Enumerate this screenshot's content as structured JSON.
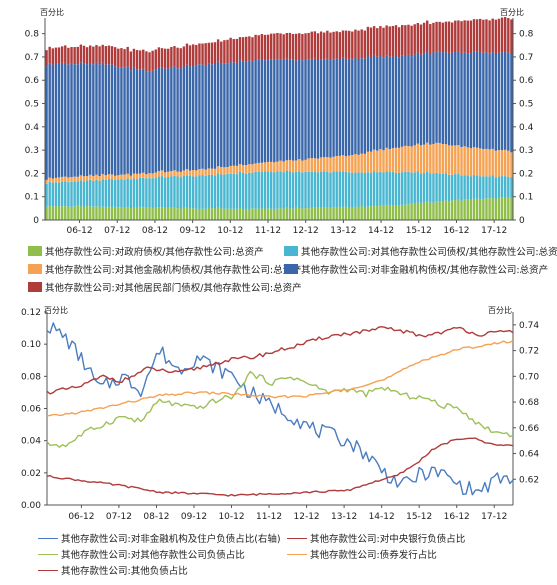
{
  "chart_data": [
    {
      "type": "bar",
      "stacked": true,
      "left_axis_title": "百分比",
      "right_axis_title": "百分比",
      "ylim": [
        0,
        0.85
      ],
      "y_ticks": [
        "0",
        "0.1",
        "0.2",
        "0.3",
        "0.4",
        "0.5",
        "0.6",
        "0.7",
        "0.8"
      ],
      "x_ticks": [
        "06-12",
        "07-12",
        "08-12",
        "09-12",
        "10-12",
        "11-12",
        "12-12",
        "13-12",
        "14-12",
        "15-12",
        "16-12",
        "17-12"
      ],
      "x_start": "2006-01",
      "x_end": "2018-06",
      "series": [
        {
          "name": "其他存款性公司:对政府债权/其他存款性公司:总资产",
          "color": "#8fbe4a",
          "anchors": [
            [
              2006.0,
              0.06
            ],
            [
              2008.0,
              0.055
            ],
            [
              2010.0,
              0.05
            ],
            [
              2012.0,
              0.05
            ],
            [
              2014.0,
              0.055
            ],
            [
              2015.5,
              0.065
            ],
            [
              2016.5,
              0.08
            ],
            [
              2017.5,
              0.09
            ],
            [
              2018.4,
              0.095
            ]
          ]
        },
        {
          "name": "其他存款性公司:对其他存款性公司债权/其他存款性公司:总资产",
          "color": "#48b6d0",
          "anchors": [
            [
              2006.0,
              0.1
            ],
            [
              2008.0,
              0.12
            ],
            [
              2010.0,
              0.14
            ],
            [
              2012.0,
              0.16
            ],
            [
              2014.0,
              0.15
            ],
            [
              2015.5,
              0.14
            ],
            [
              2016.5,
              0.12
            ],
            [
              2017.5,
              0.1
            ],
            [
              2018.4,
              0.09
            ]
          ]
        },
        {
          "name": "其他存款性公司:对其他金融机构债权/其他存款性公司:总资产",
          "color": "#f6a253",
          "anchors": [
            [
              2006.0,
              0.02
            ],
            [
              2008.0,
              0.02
            ],
            [
              2010.0,
              0.025
            ],
            [
              2012.0,
              0.04
            ],
            [
              2014.0,
              0.07
            ],
            [
              2015.5,
              0.11
            ],
            [
              2016.5,
              0.13
            ],
            [
              2017.5,
              0.12
            ],
            [
              2018.4,
              0.11
            ]
          ]
        },
        {
          "name": "其他存款性公司:对非金融机构债权/其他存款性公司:总资产",
          "color": "#3a66aa",
          "anchors": [
            [
              2006.0,
              0.49
            ],
            [
              2007.5,
              0.48
            ],
            [
              2008.7,
              0.44
            ],
            [
              2010.0,
              0.45
            ],
            [
              2012.0,
              0.44
            ],
            [
              2013.5,
              0.42
            ],
            [
              2014.5,
              0.41
            ],
            [
              2015.5,
              0.39
            ],
            [
              2016.5,
              0.39
            ],
            [
              2017.5,
              0.41
            ],
            [
              2018.4,
              0.42
            ]
          ]
        },
        {
          "name": "其他存款性公司:对其他居民部门债权/其他存款性公司:总资产",
          "color": "#b03b3b",
          "anchors": [
            [
              2006.0,
              0.07
            ],
            [
              2008.0,
              0.08
            ],
            [
              2010.0,
              0.09
            ],
            [
              2012.0,
              0.11
            ],
            [
              2014.0,
              0.12
            ],
            [
              2015.5,
              0.13
            ],
            [
              2016.5,
              0.13
            ],
            [
              2017.5,
              0.14
            ],
            [
              2018.4,
              0.15
            ]
          ]
        }
      ]
    },
    {
      "type": "line",
      "left_axis_title": "百分比",
      "right_axis_title": "百分比",
      "ylim_left": [
        0,
        0.12
      ],
      "ylim_right": [
        0.6,
        0.75
      ],
      "y_ticks_left": [
        "0.00",
        "0.02",
        "0.04",
        "0.06",
        "0.08",
        "0.10",
        "0.12"
      ],
      "y_ticks_right": [
        "0.62",
        "0.64",
        "0.66",
        "0.68",
        "0.70",
        "0.72",
        "0.74"
      ],
      "x_ticks": [
        "06-12",
        "07-12",
        "08-12",
        "09-12",
        "10-12",
        "11-12",
        "12-12",
        "13-12",
        "14-12",
        "15-12",
        "16-12",
        "17-12"
      ],
      "x_start": "2006-01",
      "x_end": "2018-06",
      "series": [
        {
          "name": "其他存款性公司:对非金融机构及住户负债占比(右轴)",
          "color": "#4a7cc0",
          "axis": "right",
          "anchors": [
            [
              2006.0,
              0.74
            ],
            [
              2006.5,
              0.73
            ],
            [
              2007.0,
              0.71
            ],
            [
              2007.4,
              0.69
            ],
            [
              2008.0,
              0.7
            ],
            [
              2008.5,
              0.69
            ],
            [
              2009.0,
              0.72
            ],
            [
              2009.5,
              0.705
            ],
            [
              2010.0,
              0.715
            ],
            [
              2010.6,
              0.705
            ],
            [
              2011.0,
              0.7
            ],
            [
              2011.3,
              0.69
            ],
            [
              2011.8,
              0.68
            ],
            [
              2012.5,
              0.67
            ],
            [
              2013.0,
              0.66
            ],
            [
              2013.5,
              0.655
            ],
            [
              2014.0,
              0.65
            ],
            [
              2014.5,
              0.64
            ],
            [
              2015.0,
              0.625
            ],
            [
              2015.5,
              0.615
            ],
            [
              2016.0,
              0.625
            ],
            [
              2016.5,
              0.625
            ],
            [
              2017.0,
              0.615
            ],
            [
              2017.5,
              0.61
            ],
            [
              2018.0,
              0.62
            ],
            [
              2018.4,
              0.62
            ]
          ]
        },
        {
          "name": "其他存款性公司:对中央银行负债占比",
          "color": "#b03b3b",
          "axis": "left",
          "anchors": [
            [
              2006.0,
              0.018
            ],
            [
              2007.0,
              0.015
            ],
            [
              2008.0,
              0.012
            ],
            [
              2009.0,
              0.008
            ],
            [
              2010.0,
              0.007
            ],
            [
              2011.0,
              0.006
            ],
            [
              2012.0,
              0.007
            ],
            [
              2013.0,
              0.008
            ],
            [
              2014.0,
              0.009
            ],
            [
              2014.8,
              0.015
            ],
            [
              2015.3,
              0.018
            ],
            [
              2015.8,
              0.025
            ],
            [
              2016.3,
              0.035
            ],
            [
              2016.8,
              0.04
            ],
            [
              2017.3,
              0.042
            ],
            [
              2017.8,
              0.038
            ],
            [
              2018.4,
              0.037
            ]
          ]
        },
        {
          "name": "其他存款性公司:对其他存款性公司负债占比",
          "color": "#9cc05a",
          "axis": "left",
          "anchors": [
            [
              2006.0,
              0.038
            ],
            [
              2006.5,
              0.037
            ],
            [
              2007.0,
              0.045
            ],
            [
              2007.5,
              0.05
            ],
            [
              2008.0,
              0.055
            ],
            [
              2008.5,
              0.052
            ],
            [
              2009.0,
              0.065
            ],
            [
              2009.5,
              0.062
            ],
            [
              2010.0,
              0.06
            ],
            [
              2010.5,
              0.065
            ],
            [
              2011.0,
              0.068
            ],
            [
              2011.4,
              0.082
            ],
            [
              2012.0,
              0.076
            ],
            [
              2012.5,
              0.08
            ],
            [
              2013.0,
              0.075
            ],
            [
              2013.5,
              0.07
            ],
            [
              2014.0,
              0.072
            ],
            [
              2014.5,
              0.069
            ],
            [
              2015.0,
              0.073
            ],
            [
              2015.5,
              0.068
            ],
            [
              2016.0,
              0.067
            ],
            [
              2016.5,
              0.062
            ],
            [
              2017.0,
              0.06
            ],
            [
              2017.5,
              0.05
            ],
            [
              2018.0,
              0.045
            ],
            [
              2018.4,
              0.044
            ]
          ]
        },
        {
          "name": "其他存款性公司:债券发行占比",
          "color": "#f6a253",
          "axis": "left",
          "anchors": [
            [
              2006.0,
              0.055
            ],
            [
              2007.0,
              0.058
            ],
            [
              2008.0,
              0.063
            ],
            [
              2009.0,
              0.068
            ],
            [
              2010.0,
              0.07
            ],
            [
              2011.0,
              0.069
            ],
            [
              2012.0,
              0.067
            ],
            [
              2013.0,
              0.068
            ],
            [
              2014.0,
              0.072
            ],
            [
              2015.0,
              0.078
            ],
            [
              2016.0,
              0.09
            ],
            [
              2017.0,
              0.097
            ],
            [
              2018.4,
              0.102
            ]
          ]
        },
        {
          "name": "其他存款性公司:其他负债占比",
          "color": "#b03b3b",
          "axis": "left",
          "anchors": [
            [
              2006.0,
              0.07
            ],
            [
              2006.8,
              0.073
            ],
            [
              2007.5,
              0.08
            ],
            [
              2008.0,
              0.077
            ],
            [
              2008.7,
              0.085
            ],
            [
              2009.5,
              0.082
            ],
            [
              2010.0,
              0.085
            ],
            [
              2010.8,
              0.09
            ],
            [
              2011.5,
              0.092
            ],
            [
              2012.0,
              0.095
            ],
            [
              2012.8,
              0.1
            ],
            [
              2013.5,
              0.105
            ],
            [
              2014.5,
              0.108
            ],
            [
              2015.0,
              0.11
            ],
            [
              2015.5,
              0.108
            ],
            [
              2016.0,
              0.105
            ],
            [
              2017.0,
              0.11
            ],
            [
              2017.5,
              0.106
            ],
            [
              2018.4,
              0.108
            ]
          ]
        }
      ]
    }
  ]
}
